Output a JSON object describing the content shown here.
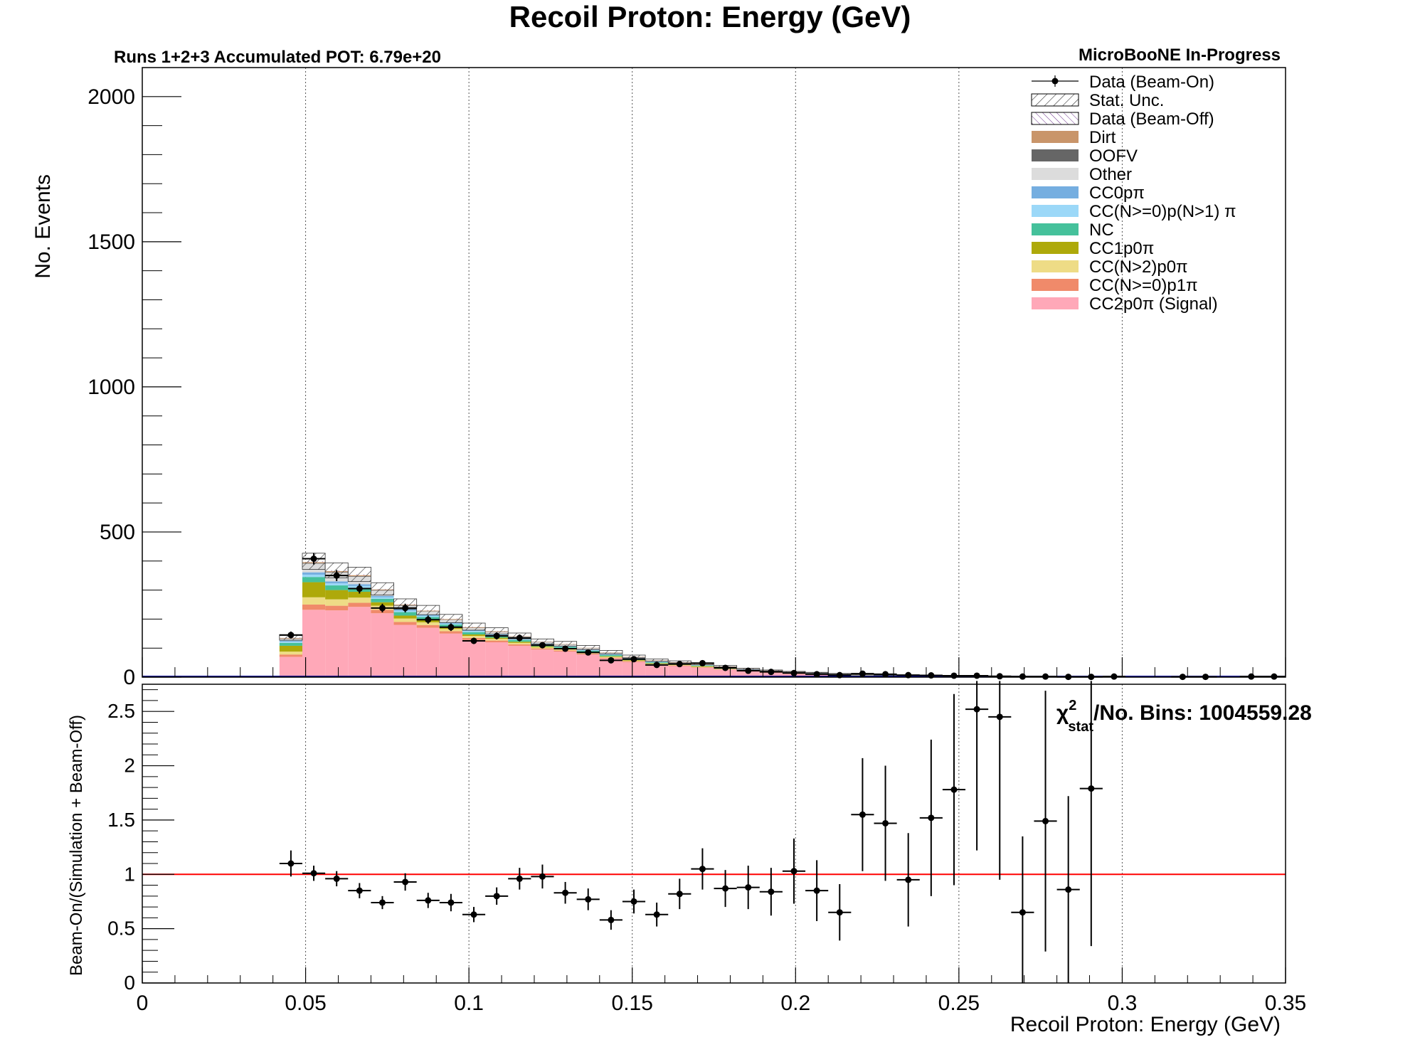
{
  "chart_data": [
    {
      "type": "bar",
      "stacked": true,
      "title": "Recoil Proton: Energy (GeV)",
      "subtitle_left": "Runs 1+2+3 Accumulated POT: 6.79e+20",
      "subtitle_right": "MicroBooNE In-Progress",
      "ylabel": "No. Events",
      "xlim": [
        0,
        0.35
      ],
      "ylim": [
        0,
        2100
      ],
      "x_ticks": [
        "0",
        "0.05",
        "0.1",
        "0.15",
        "0.2",
        "0.25",
        "0.3",
        "0.35"
      ],
      "y_ticks": [
        "0",
        "500",
        "1000",
        "1500",
        "2000"
      ],
      "x_grid": true,
      "bin_edges": [
        0.042,
        0.049,
        0.056,
        0.063,
        0.07,
        0.077,
        0.084,
        0.091,
        0.098,
        0.105,
        0.112,
        0.119,
        0.126,
        0.133,
        0.14,
        0.147,
        0.154,
        0.161,
        0.168,
        0.175,
        0.182,
        0.189,
        0.196,
        0.203,
        0.21,
        0.217,
        0.224,
        0.231,
        0.238,
        0.245,
        0.252,
        0.259,
        0.266,
        0.273,
        0.28,
        0.287,
        0.294
      ],
      "series": [
        {
          "name": "CC2p0π (Signal)",
          "color": "#ffa8b8",
          "values": [
            70,
            232,
            230,
            242,
            220,
            180,
            170,
            150,
            128,
            120,
            108,
            95,
            88,
            78,
            64,
            52,
            42,
            38,
            32,
            26,
            20,
            15,
            11,
            8,
            6,
            5,
            4,
            3,
            2,
            2,
            1.5,
            1,
            1,
            1,
            0.5,
            0.5
          ]
        },
        {
          "name": "CC(N>=0)p1π",
          "color": "#f08a6a",
          "values": [
            8,
            18,
            16,
            14,
            12,
            10,
            9,
            8,
            7,
            6,
            5,
            4,
            4,
            3,
            3,
            3,
            2,
            2,
            2,
            1,
            1,
            1,
            1,
            1,
            0.5,
            0.5,
            0.5,
            0.5,
            0.5,
            0.5,
            0.5,
            0.5,
            0.3,
            0.3,
            0.2,
            0.2
          ]
        },
        {
          "name": "CC(N>2)p0π",
          "color": "#eedc86",
          "values": [
            10,
            25,
            22,
            18,
            14,
            12,
            10,
            8,
            7,
            6,
            5,
            4,
            4,
            3,
            3,
            2,
            2,
            2,
            2,
            1,
            1,
            1,
            1,
            1,
            0.5,
            0.5,
            0.5,
            0.5,
            0.5,
            0.5,
            0.5,
            0.3,
            0.3,
            0.3,
            0.2,
            0.2
          ]
        },
        {
          "name": "CC1p0π",
          "color": "#aea90a",
          "values": [
            20,
            52,
            32,
            20,
            12,
            10,
            8,
            6,
            5,
            4,
            4,
            3,
            3,
            3,
            2,
            2,
            2,
            2,
            2,
            1,
            1,
            1,
            1,
            1,
            0.5,
            0.5,
            0.5,
            0.5,
            0.5,
            0.5,
            0.3,
            0.3,
            0.3,
            0.3,
            0.2,
            0.2
          ]
        },
        {
          "name": "NC",
          "color": "#45c19b",
          "values": [
            10,
            18,
            16,
            14,
            12,
            12,
            10,
            9,
            8,
            7,
            6,
            5,
            5,
            4,
            4,
            3,
            3,
            2,
            2,
            2,
            1,
            1,
            1,
            1,
            1,
            0.5,
            0.5,
            0.5,
            0.5,
            0.5,
            0.3,
            0.3,
            0.3,
            0.3,
            0.2,
            0.2
          ]
        },
        {
          "name": "CC(N>=0)p(N>1) π",
          "color": "#9bd8f8",
          "values": [
            4,
            8,
            7,
            6,
            5,
            5,
            5,
            4,
            4,
            3,
            3,
            3,
            2,
            2,
            2,
            2,
            2,
            1,
            1,
            1,
            1,
            1,
            0.5,
            0.5,
            0.5,
            0.5,
            0.3,
            0.3,
            0.3,
            0.3,
            0.2,
            0.2,
            0.2,
            0.2,
            0.1,
            0.1
          ]
        },
        {
          "name": "CC0pπ",
          "color": "#75aee0",
          "values": [
            4,
            8,
            7,
            6,
            5,
            5,
            4,
            4,
            3,
            3,
            3,
            2,
            2,
            2,
            2,
            1,
            1,
            1,
            1,
            1,
            1,
            0.5,
            0.5,
            0.5,
            0.5,
            0.3,
            0.3,
            0.3,
            0.3,
            0.2,
            0.2,
            0.2,
            0.2,
            0.1,
            0.1,
            0.1
          ]
        },
        {
          "name": "Other",
          "color": "#dcdcdc",
          "values": [
            6,
            30,
            30,
            26,
            18,
            12,
            10,
            8,
            7,
            6,
            5,
            4,
            4,
            4,
            3,
            3,
            2,
            2,
            2,
            2,
            1,
            1,
            1,
            1,
            1,
            0.5,
            0.5,
            0.5,
            0.5,
            0.5,
            0.3,
            0.3,
            0.3,
            0.3,
            0.2,
            0.2
          ]
        },
        {
          "name": "OOFV",
          "color": "#666666",
          "values": [
            1,
            2,
            2,
            2,
            2,
            2,
            1,
            1,
            1,
            1,
            1,
            1,
            1,
            1,
            1,
            1,
            0.5,
            0.5,
            0.5,
            0.5,
            0.5,
            0.5,
            0.5,
            0.5,
            0.3,
            0.3,
            0.3,
            0.3,
            0.3,
            0.3,
            0.2,
            0.2,
            0.2,
            0.2,
            0.1,
            0.1
          ]
        },
        {
          "name": "Dirt",
          "color": "#c9956a",
          "values": [
            2,
            3,
            3,
            3,
            2,
            2,
            2,
            2,
            2,
            2,
            1,
            1,
            1,
            1,
            1,
            1,
            1,
            1,
            1,
            1,
            0.5,
            0.5,
            0.5,
            0.5,
            0.5,
            0.5,
            0.3,
            0.3,
            0.3,
            0.3,
            0.2,
            0.2,
            0.2,
            0.2,
            0.1,
            0.1
          ]
        },
        {
          "name": "Data (Beam-Off)",
          "color": "#ffffff",
          "values": [
            2,
            3,
            3,
            3,
            2,
            2,
            2,
            2,
            2,
            1,
            1,
            1,
            1,
            1,
            1,
            1,
            1,
            1,
            1,
            1,
            0.5,
            0.5,
            0.5,
            0.5,
            0.5,
            0.5,
            0.3,
            0.3,
            0.3,
            0.3,
            0.2,
            0.2,
            0.2,
            0.2,
            0.1,
            0.1
          ]
        }
      ],
      "stat_unc": {
        "name": "Stat. Unc.",
        "fraction": 0.07
      },
      "data_points": {
        "name": "Data (Beam-On)",
        "x": [
          0.0455,
          0.0525,
          0.0595,
          0.0665,
          0.0735,
          0.0805,
          0.0875,
          0.0945,
          0.1015,
          0.1085,
          0.1155,
          0.1225,
          0.1295,
          0.1365,
          0.1435,
          0.1505,
          0.1575,
          0.1645,
          0.1715,
          0.1785,
          0.1855,
          0.1925,
          0.1995,
          0.2065,
          0.2135,
          0.2205,
          0.2275,
          0.2345,
          0.2415,
          0.2485,
          0.2555,
          0.2625,
          0.2695,
          0.2765,
          0.2835,
          0.2905,
          0.2975,
          0.3185,
          0.3255,
          0.3395,
          0.3465
        ],
        "y": [
          145,
          408,
          350,
          305,
          238,
          238,
          198,
          172,
          125,
          142,
          135,
          110,
          98,
          85,
          58,
          62,
          42,
          45,
          48,
          32,
          22,
          18,
          14,
          10,
          7,
          12,
          10,
          7,
          6,
          5,
          5,
          3,
          2,
          2,
          1,
          1,
          2,
          1,
          1,
          2,
          2
        ],
        "yerr": [
          12,
          20,
          19,
          17,
          15,
          15,
          14,
          13,
          11,
          12,
          12,
          10,
          10,
          9,
          8,
          8,
          6,
          7,
          7,
          6,
          5,
          4,
          4,
          3,
          3,
          3,
          3,
          3,
          2,
          2,
          2,
          2,
          1,
          1,
          1,
          1,
          1,
          1,
          1,
          1,
          1
        ]
      },
      "legend_position": "top-right",
      "legend": [
        {
          "label": "Data (Beam-On)",
          "kind": "marker"
        },
        {
          "label": "Stat. Unc.",
          "kind": "hatch"
        },
        {
          "label": "Data (Beam-Off)",
          "kind": "hatch-purple"
        },
        {
          "label": "Dirt",
          "kind": "fill",
          "color": "#c9956a"
        },
        {
          "label": "OOFV",
          "kind": "fill",
          "color": "#666666"
        },
        {
          "label": "Other",
          "kind": "fill",
          "color": "#dcdcdc"
        },
        {
          "label": "CC0pπ",
          "kind": "fill",
          "color": "#75aee0"
        },
        {
          "label": "CC(N>=0)p(N>1) π",
          "kind": "fill",
          "color": "#9bd8f8"
        },
        {
          "label": "NC",
          "kind": "fill",
          "color": "#45c19b"
        },
        {
          "label": "CC1p0π",
          "kind": "fill",
          "color": "#aea90a"
        },
        {
          "label": "CC(N>2)p0π",
          "kind": "fill",
          "color": "#eedc86"
        },
        {
          "label": "CC(N>=0)p1π",
          "kind": "fill",
          "color": "#f08a6a"
        },
        {
          "label": "CC2p0π (Signal)",
          "kind": "fill",
          "color": "#ffa8b8"
        }
      ]
    },
    {
      "type": "scatter",
      "ylabel": "Beam-On/(Simulation + Beam-Off)",
      "xlabel": "Recoil Proton: Energy (GeV)",
      "xlim": [
        0,
        0.35
      ],
      "ylim": [
        0,
        2.75
      ],
      "x_ticks": [
        "0",
        "0.05",
        "0.1",
        "0.15",
        "0.2",
        "0.25",
        "0.3",
        "0.35"
      ],
      "y_ticks": [
        "0",
        "0.5",
        "1",
        "1.5",
        "2",
        "2.5"
      ],
      "x_grid": true,
      "reference_line": {
        "y": 1,
        "color": "#ff0000"
      },
      "annotation": {
        "chi_symbol": "χ",
        "superscript": "2",
        "subscript": "stat",
        "text": "/No. Bins: 1004559.28"
      },
      "x": [
        0.0455,
        0.0525,
        0.0595,
        0.0665,
        0.0735,
        0.0805,
        0.0875,
        0.0945,
        0.1015,
        0.1085,
        0.1155,
        0.1225,
        0.1295,
        0.1365,
        0.1435,
        0.1505,
        0.1575,
        0.1645,
        0.1715,
        0.1785,
        0.1855,
        0.1925,
        0.1995,
        0.2065,
        0.2135,
        0.2205,
        0.2275,
        0.2345,
        0.2415,
        0.2485,
        0.2555,
        0.2625,
        0.2695,
        0.2765,
        0.2835,
        0.2905
      ],
      "y": [
        1.1,
        1.01,
        0.96,
        0.85,
        0.74,
        0.93,
        0.76,
        0.74,
        0.63,
        0.8,
        0.96,
        0.98,
        0.83,
        0.77,
        0.58,
        0.75,
        0.63,
        0.82,
        1.05,
        0.87,
        0.88,
        0.84,
        1.03,
        0.85,
        0.65,
        1.55,
        1.47,
        0.95,
        1.52,
        1.78,
        2.52,
        2.45,
        0.65,
        1.49,
        0.86,
        1.79
      ],
      "yerr": [
        0.12,
        0.07,
        0.07,
        0.07,
        0.06,
        0.08,
        0.07,
        0.08,
        0.07,
        0.08,
        0.1,
        0.11,
        0.1,
        0.1,
        0.09,
        0.11,
        0.11,
        0.14,
        0.19,
        0.17,
        0.2,
        0.22,
        0.3,
        0.28,
        0.26,
        0.52,
        0.53,
        0.43,
        0.72,
        0.88,
        1.3,
        1.5,
        0.7,
        1.2,
        0.86,
        1.45
      ]
    }
  ]
}
